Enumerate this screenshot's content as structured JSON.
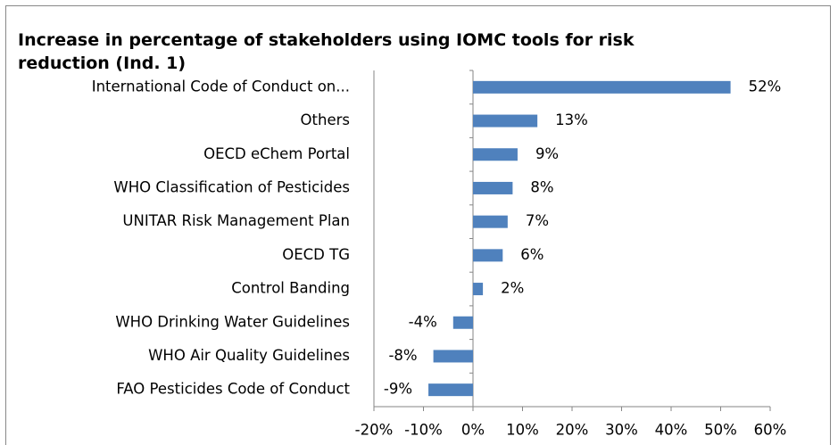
{
  "chart_data": {
    "type": "bar",
    "orientation": "horizontal",
    "title": "Increase in percentage of stakeholders using IOMC tools for risk reduction (Ind. 1)",
    "categories": [
      "International Code of Conduct on...",
      "Others",
      "OECD eChem Portal",
      "WHO Classification of Pesticides",
      "UNITAR Risk Management Plan",
      "OECD TG",
      "Control Banding",
      "WHO Drinking Water Guidelines",
      "WHO Air Quality Guidelines",
      "FAO Pesticides Code of Conduct"
    ],
    "values": [
      52,
      13,
      9,
      8,
      7,
      6,
      2,
      -4,
      -8,
      -9
    ],
    "value_labels": [
      "52%",
      "13%",
      "9%",
      "8%",
      "7%",
      "6%",
      "2%",
      "-4%",
      "-8%",
      "-9%"
    ],
    "color": "#4f81bd",
    "xlim": [
      -20,
      60
    ],
    "xticks": [
      {
        "value": -20,
        "label": "-20%"
      },
      {
        "value": -10,
        "label": "-10%"
      },
      {
        "value": 0,
        "label": "0%"
      },
      {
        "value": 10,
        "label": "10%"
      },
      {
        "value": 20,
        "label": "20%"
      },
      {
        "value": 30,
        "label": "30%"
      },
      {
        "value": 40,
        "label": "40%"
      },
      {
        "value": 50,
        "label": "50%"
      },
      {
        "value": 60,
        "label": "60%"
      }
    ],
    "grid": false
  }
}
